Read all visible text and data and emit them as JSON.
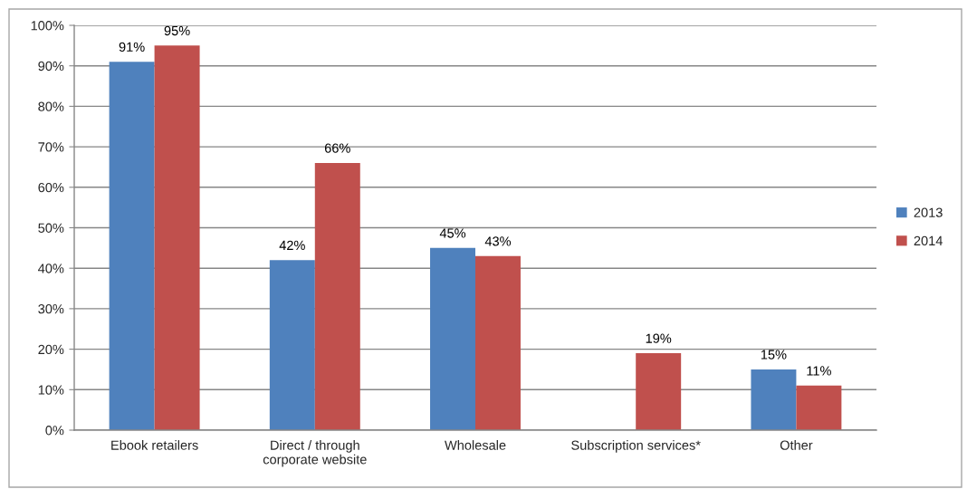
{
  "chart_data": {
    "type": "bar",
    "categories": [
      "Ebook retailers",
      "Direct / through\ncorporate website",
      "Wholesale",
      "Subscription services*",
      "Other"
    ],
    "series": [
      {
        "name": "2013",
        "color": "#4f81bd",
        "values": [
          91,
          42,
          45,
          null,
          15
        ],
        "value_labels": [
          "91%",
          "42%",
          "45%",
          null,
          "15%"
        ]
      },
      {
        "name": "2014",
        "color": "#c0504d",
        "values": [
          95,
          66,
          43,
          19,
          11
        ],
        "value_labels": [
          "95%",
          "66%",
          "43%",
          "19%",
          "11%"
        ]
      }
    ],
    "ylim": [
      0,
      100
    ],
    "yticks": [
      {
        "value": 0,
        "label": "0%"
      },
      {
        "value": 10,
        "label": "10%"
      },
      {
        "value": 20,
        "label": "20%"
      },
      {
        "value": 30,
        "label": "30%"
      },
      {
        "value": 40,
        "label": "40%"
      },
      {
        "value": 50,
        "label": "50%"
      },
      {
        "value": 60,
        "label": "60%"
      },
      {
        "value": 70,
        "label": "70%"
      },
      {
        "value": 80,
        "label": "80%"
      },
      {
        "value": 90,
        "label": "90%"
      },
      {
        "value": 100,
        "label": "100%"
      }
    ],
    "grid": "y",
    "legend": "right"
  }
}
